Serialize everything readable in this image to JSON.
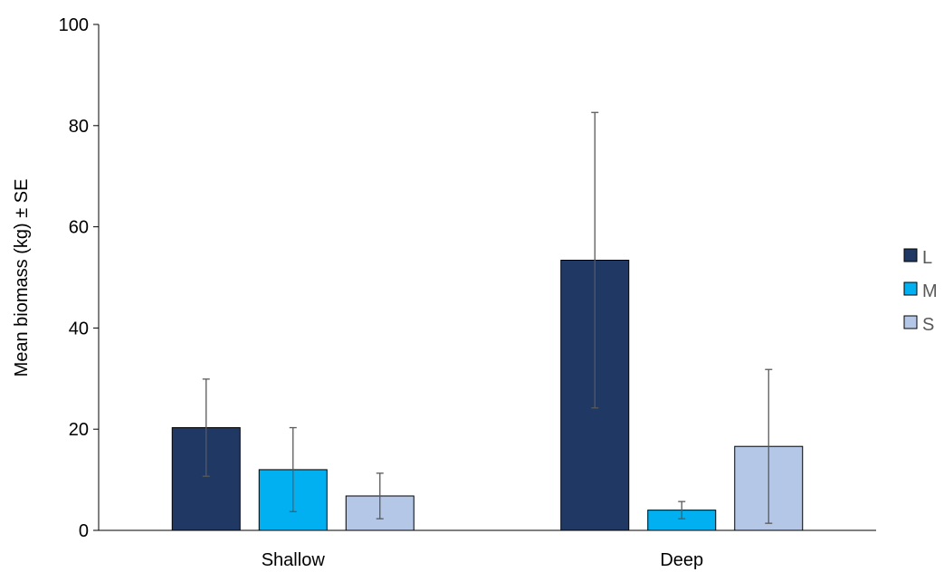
{
  "chart_data": {
    "type": "bar",
    "title": "",
    "xlabel": "",
    "ylabel": "Mean biomass (kg) ± SE",
    "categories": [
      "Shallow",
      "Deep"
    ],
    "series": [
      {
        "name": "L",
        "color": "#203864",
        "values": [
          20.3,
          53.4
        ],
        "errors": [
          9.6,
          29.2
        ]
      },
      {
        "name": "M",
        "color": "#00B0F0",
        "values": [
          12.0,
          4.0
        ],
        "errors": [
          8.3,
          1.7
        ]
      },
      {
        "name": "S",
        "color": "#B4C7E7",
        "values": [
          6.8,
          16.6
        ],
        "errors": [
          4.5,
          15.2
        ]
      }
    ],
    "ylim": [
      0,
      100
    ],
    "yticks": [
      0,
      20,
      40,
      60,
      80,
      100
    ],
    "ytick_labels": [
      "0",
      "20",
      "40",
      "60",
      "80",
      "100"
    ],
    "grid": false,
    "legend_position": "right"
  }
}
